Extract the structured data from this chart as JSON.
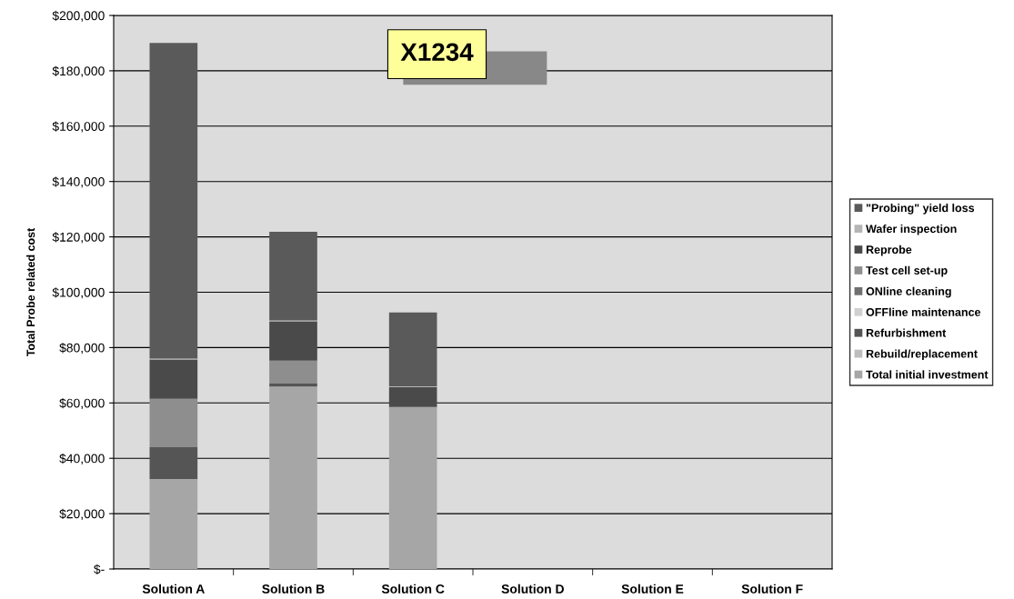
{
  "chart_data": {
    "type": "bar",
    "stacked": true,
    "ylabel": "Total Probe related cost",
    "annotations": [
      "X1234"
    ],
    "categories": [
      "Solution A",
      "Solution B",
      "Solution C",
      "Solution D",
      "Solution E",
      "Solution F"
    ],
    "series": [
      {
        "name": "Total initial investment",
        "color": "#a6a6a6",
        "values": [
          32500,
          65900,
          58500,
          0,
          0,
          0
        ]
      },
      {
        "name": "Rebuild/replacement",
        "color": "#bdbdbd",
        "values": [
          0,
          0,
          0,
          0,
          0,
          0
        ]
      },
      {
        "name": "Refurbishment",
        "color": "#555555",
        "values": [
          11500,
          1100,
          0,
          0,
          0,
          0
        ]
      },
      {
        "name": "OFFline maintenance",
        "color": "#d0d0d0",
        "values": [
          0,
          0,
          0,
          0,
          0,
          0
        ]
      },
      {
        "name": "ONline cleaning",
        "color": "#707070",
        "values": [
          0,
          0,
          0,
          0,
          0,
          0
        ]
      },
      {
        "name": "Test cell set-up",
        "color": "#8e8e8e",
        "values": [
          17500,
          8300,
          0,
          0,
          0,
          0
        ]
      },
      {
        "name": "Reprobe",
        "color": "#4a4a4a",
        "values": [
          14200,
          14200,
          7200,
          0,
          0,
          0
        ]
      },
      {
        "name": "Wafer inspection",
        "color": "#b5b5b5",
        "values": [
          300,
          300,
          300,
          0,
          0,
          0
        ]
      },
      {
        "name": "\"Probing\" yield loss",
        "color": "#5a5a5a",
        "values": [
          114100,
          32000,
          26700,
          0,
          0,
          0
        ]
      }
    ],
    "ylim": [
      0,
      200000
    ],
    "yticks": [
      {
        "value": 0,
        "label": "$-"
      },
      {
        "value": 20000,
        "label": "$20,000"
      },
      {
        "value": 40000,
        "label": "$40,000"
      },
      {
        "value": 60000,
        "label": "$60,000"
      },
      {
        "value": 80000,
        "label": "$80,000"
      },
      {
        "value": 100000,
        "label": "$100,000"
      },
      {
        "value": 120000,
        "label": "$120,000"
      },
      {
        "value": 140000,
        "label": "$140,000"
      },
      {
        "value": 160000,
        "label": "$160,000"
      },
      {
        "value": 180000,
        "label": "$180,000"
      },
      {
        "value": 200000,
        "label": "$200,000"
      }
    ],
    "grid": "y",
    "legend": "right"
  }
}
